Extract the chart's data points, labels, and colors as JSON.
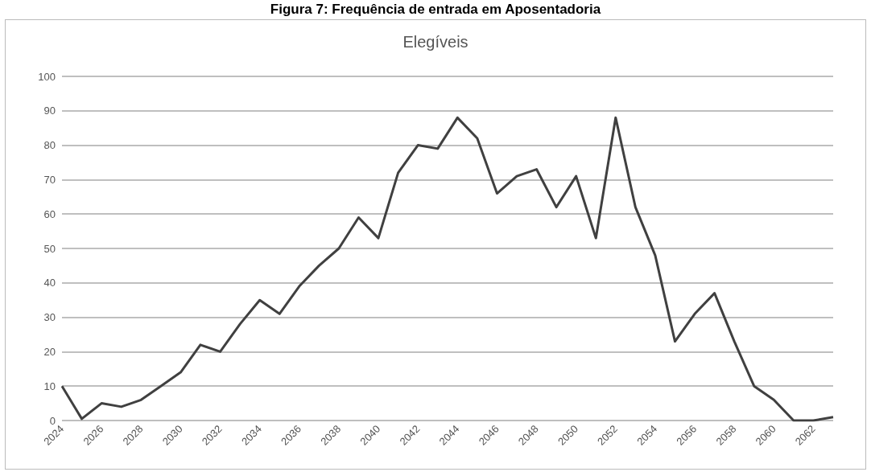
{
  "chart_data": {
    "type": "line",
    "title": "Figura 7: Frequência de entrada em Aposentadoria",
    "subtitle": "Elegíveis",
    "categories": [
      "2024",
      null,
      "2026",
      null,
      "2028",
      null,
      "2030",
      null,
      "2032",
      null,
      "2034",
      null,
      "2036",
      null,
      "2038",
      null,
      "2040",
      null,
      "2042",
      null,
      "2044",
      null,
      "2046",
      null,
      "2048",
      null,
      "2050",
      null,
      "2052",
      null,
      "2054",
      null,
      "2056",
      null,
      "2058",
      null,
      "2060",
      null,
      "2062",
      null
    ],
    "values": [
      10,
      0.5,
      5,
      4,
      6,
      10,
      14,
      22,
      20,
      28,
      35,
      31,
      39,
      45,
      50,
      59,
      53,
      72,
      80,
      79,
      88,
      82,
      66,
      71,
      73,
      62,
      71,
      53,
      88,
      62,
      48,
      23,
      31,
      37,
      23,
      10,
      6,
      0,
      0,
      1
    ],
    "color": "#404040",
    "ylim": [
      0,
      100
    ],
    "yticks": [
      0,
      10,
      20,
      30,
      40,
      50,
      60,
      70,
      80,
      90,
      100
    ],
    "grid": "y",
    "marker": "none",
    "line_style": "solid"
  }
}
